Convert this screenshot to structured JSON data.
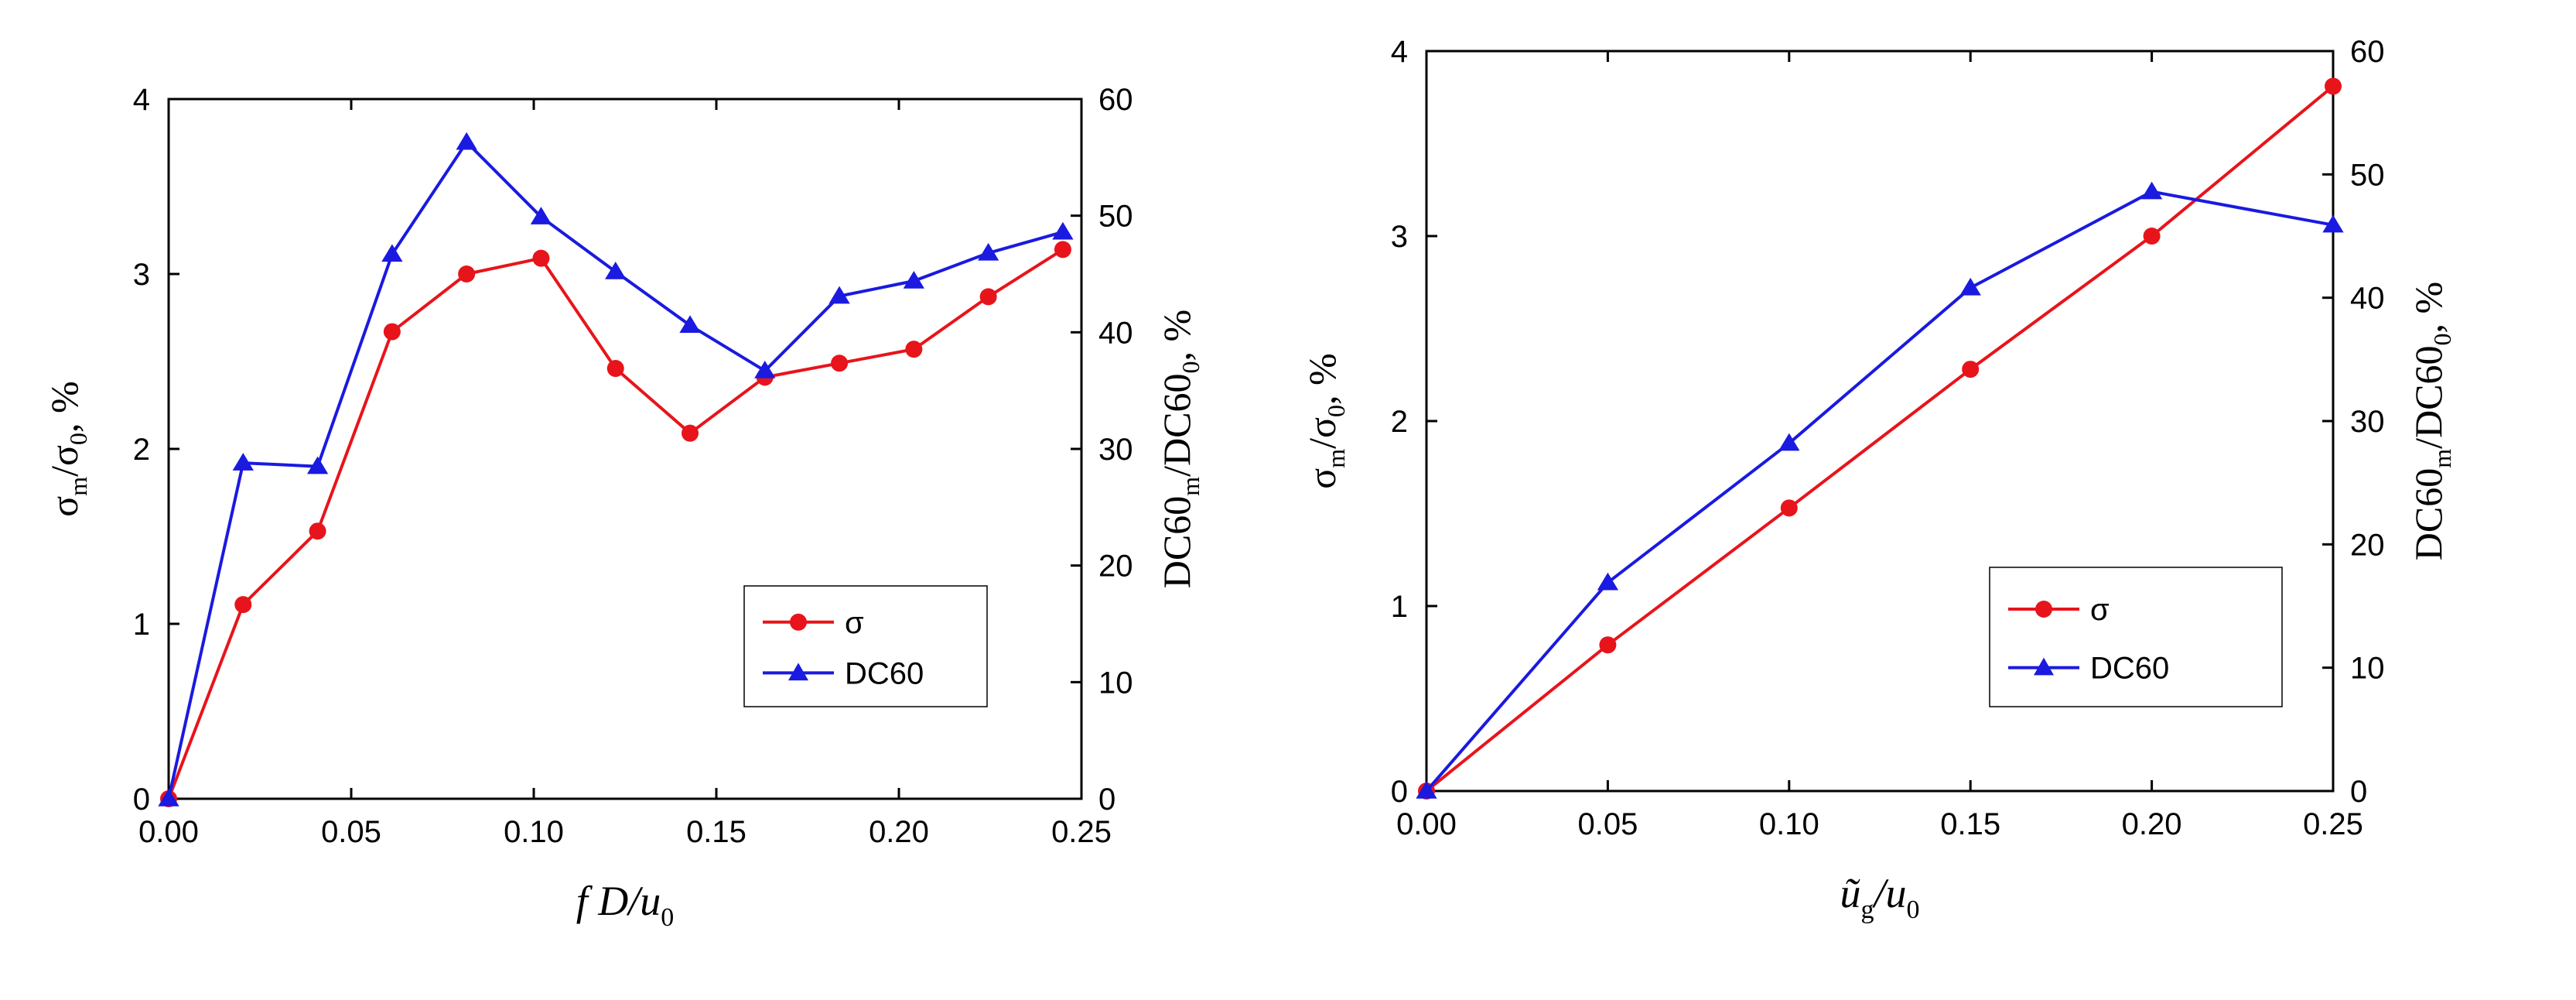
{
  "chart_data": [
    {
      "type": "line",
      "xlabel": {
        "italic_var": "f D",
        "main": "/u",
        "sub": "0"
      },
      "ylabel_left": {
        "base": "σ",
        "sub1": "m",
        "mid": "/σ",
        "sub2": "0",
        "tail": ", %"
      },
      "ylabel_right": {
        "base": "DC60",
        "sub1": "m",
        "mid": "/DC60",
        "sub2": "0",
        "tail": ", %"
      },
      "xlim": [
        0.0,
        0.25
      ],
      "ylim_left": [
        0,
        4
      ],
      "ylim_right": [
        0,
        60
      ],
      "xticks": [
        "0.00",
        "0.05",
        "0.10",
        "0.15",
        "0.20",
        "0.25"
      ],
      "xtick_values": [
        0.0,
        0.05,
        0.1,
        0.15,
        0.2,
        0.25
      ],
      "yticks_left": [
        "0",
        "1",
        "2",
        "3",
        "4"
      ],
      "yticks_right": [
        "0",
        "10",
        "20",
        "30",
        "40",
        "50",
        "60"
      ],
      "series": [
        {
          "name": "σ",
          "axis": "left",
          "color": "#e8141b",
          "marker": "circle",
          "x": [
            0.0,
            0.0204,
            0.0408,
            0.0612,
            0.0816,
            0.102,
            0.1224,
            0.1428,
            0.1633,
            0.1837,
            0.2041,
            0.2245,
            0.2449
          ],
          "y": [
            0.0,
            1.11,
            1.53,
            2.67,
            3.0,
            3.09,
            2.46,
            2.09,
            2.41,
            2.49,
            2.57,
            2.87,
            3.14
          ]
        },
        {
          "name": "DC60",
          "axis": "right",
          "color": "#1a1ae0",
          "marker": "triangle",
          "x": [
            0.0,
            0.0204,
            0.0408,
            0.0612,
            0.0816,
            0.102,
            0.1224,
            0.1428,
            0.1633,
            0.1837,
            0.2041,
            0.2245,
            0.2449
          ],
          "y": [
            0.0,
            28.8,
            28.5,
            46.7,
            56.3,
            49.9,
            45.2,
            40.6,
            36.7,
            43.1,
            44.4,
            46.8,
            48.6
          ]
        }
      ],
      "legend": {
        "position": "lower-right"
      }
    },
    {
      "type": "line",
      "xlabel": {
        "italic_var": "ũ",
        "sub_var": "g",
        "main": "/u",
        "sub": "0"
      },
      "ylabel_left": {
        "base": "σ",
        "sub1": "m",
        "mid": "/σ",
        "sub2": "0",
        "tail": ", %"
      },
      "ylabel_right": {
        "base": "DC60",
        "sub1": "m",
        "mid": "/DC60",
        "sub2": "0",
        "tail": ", %"
      },
      "xlim": [
        0.0,
        0.25
      ],
      "ylim_left": [
        0,
        4
      ],
      "ylim_right": [
        0,
        60
      ],
      "xticks": [
        "0.00",
        "0.05",
        "0.10",
        "0.15",
        "0.20",
        "0.25"
      ],
      "xtick_values": [
        0.0,
        0.05,
        0.1,
        0.15,
        0.2,
        0.25
      ],
      "yticks_left": [
        "0",
        "1",
        "2",
        "3",
        "4"
      ],
      "yticks_right": [
        "0",
        "10",
        "20",
        "30",
        "40",
        "50",
        "60"
      ],
      "series": [
        {
          "name": "σ",
          "axis": "left",
          "color": "#e8141b",
          "marker": "circle",
          "x": [
            0.0,
            0.05,
            0.1,
            0.15,
            0.2,
            0.25
          ],
          "y": [
            0.0,
            0.79,
            1.53,
            2.28,
            3.0,
            3.81
          ]
        },
        {
          "name": "DC60",
          "axis": "right",
          "color": "#1a1ae0",
          "marker": "triangle",
          "x": [
            0.0,
            0.05,
            0.1,
            0.15,
            0.2,
            0.25
          ],
          "y": [
            0.0,
            16.9,
            28.2,
            40.8,
            48.6,
            45.9
          ]
        }
      ],
      "legend": {
        "position": "lower-right"
      }
    }
  ]
}
